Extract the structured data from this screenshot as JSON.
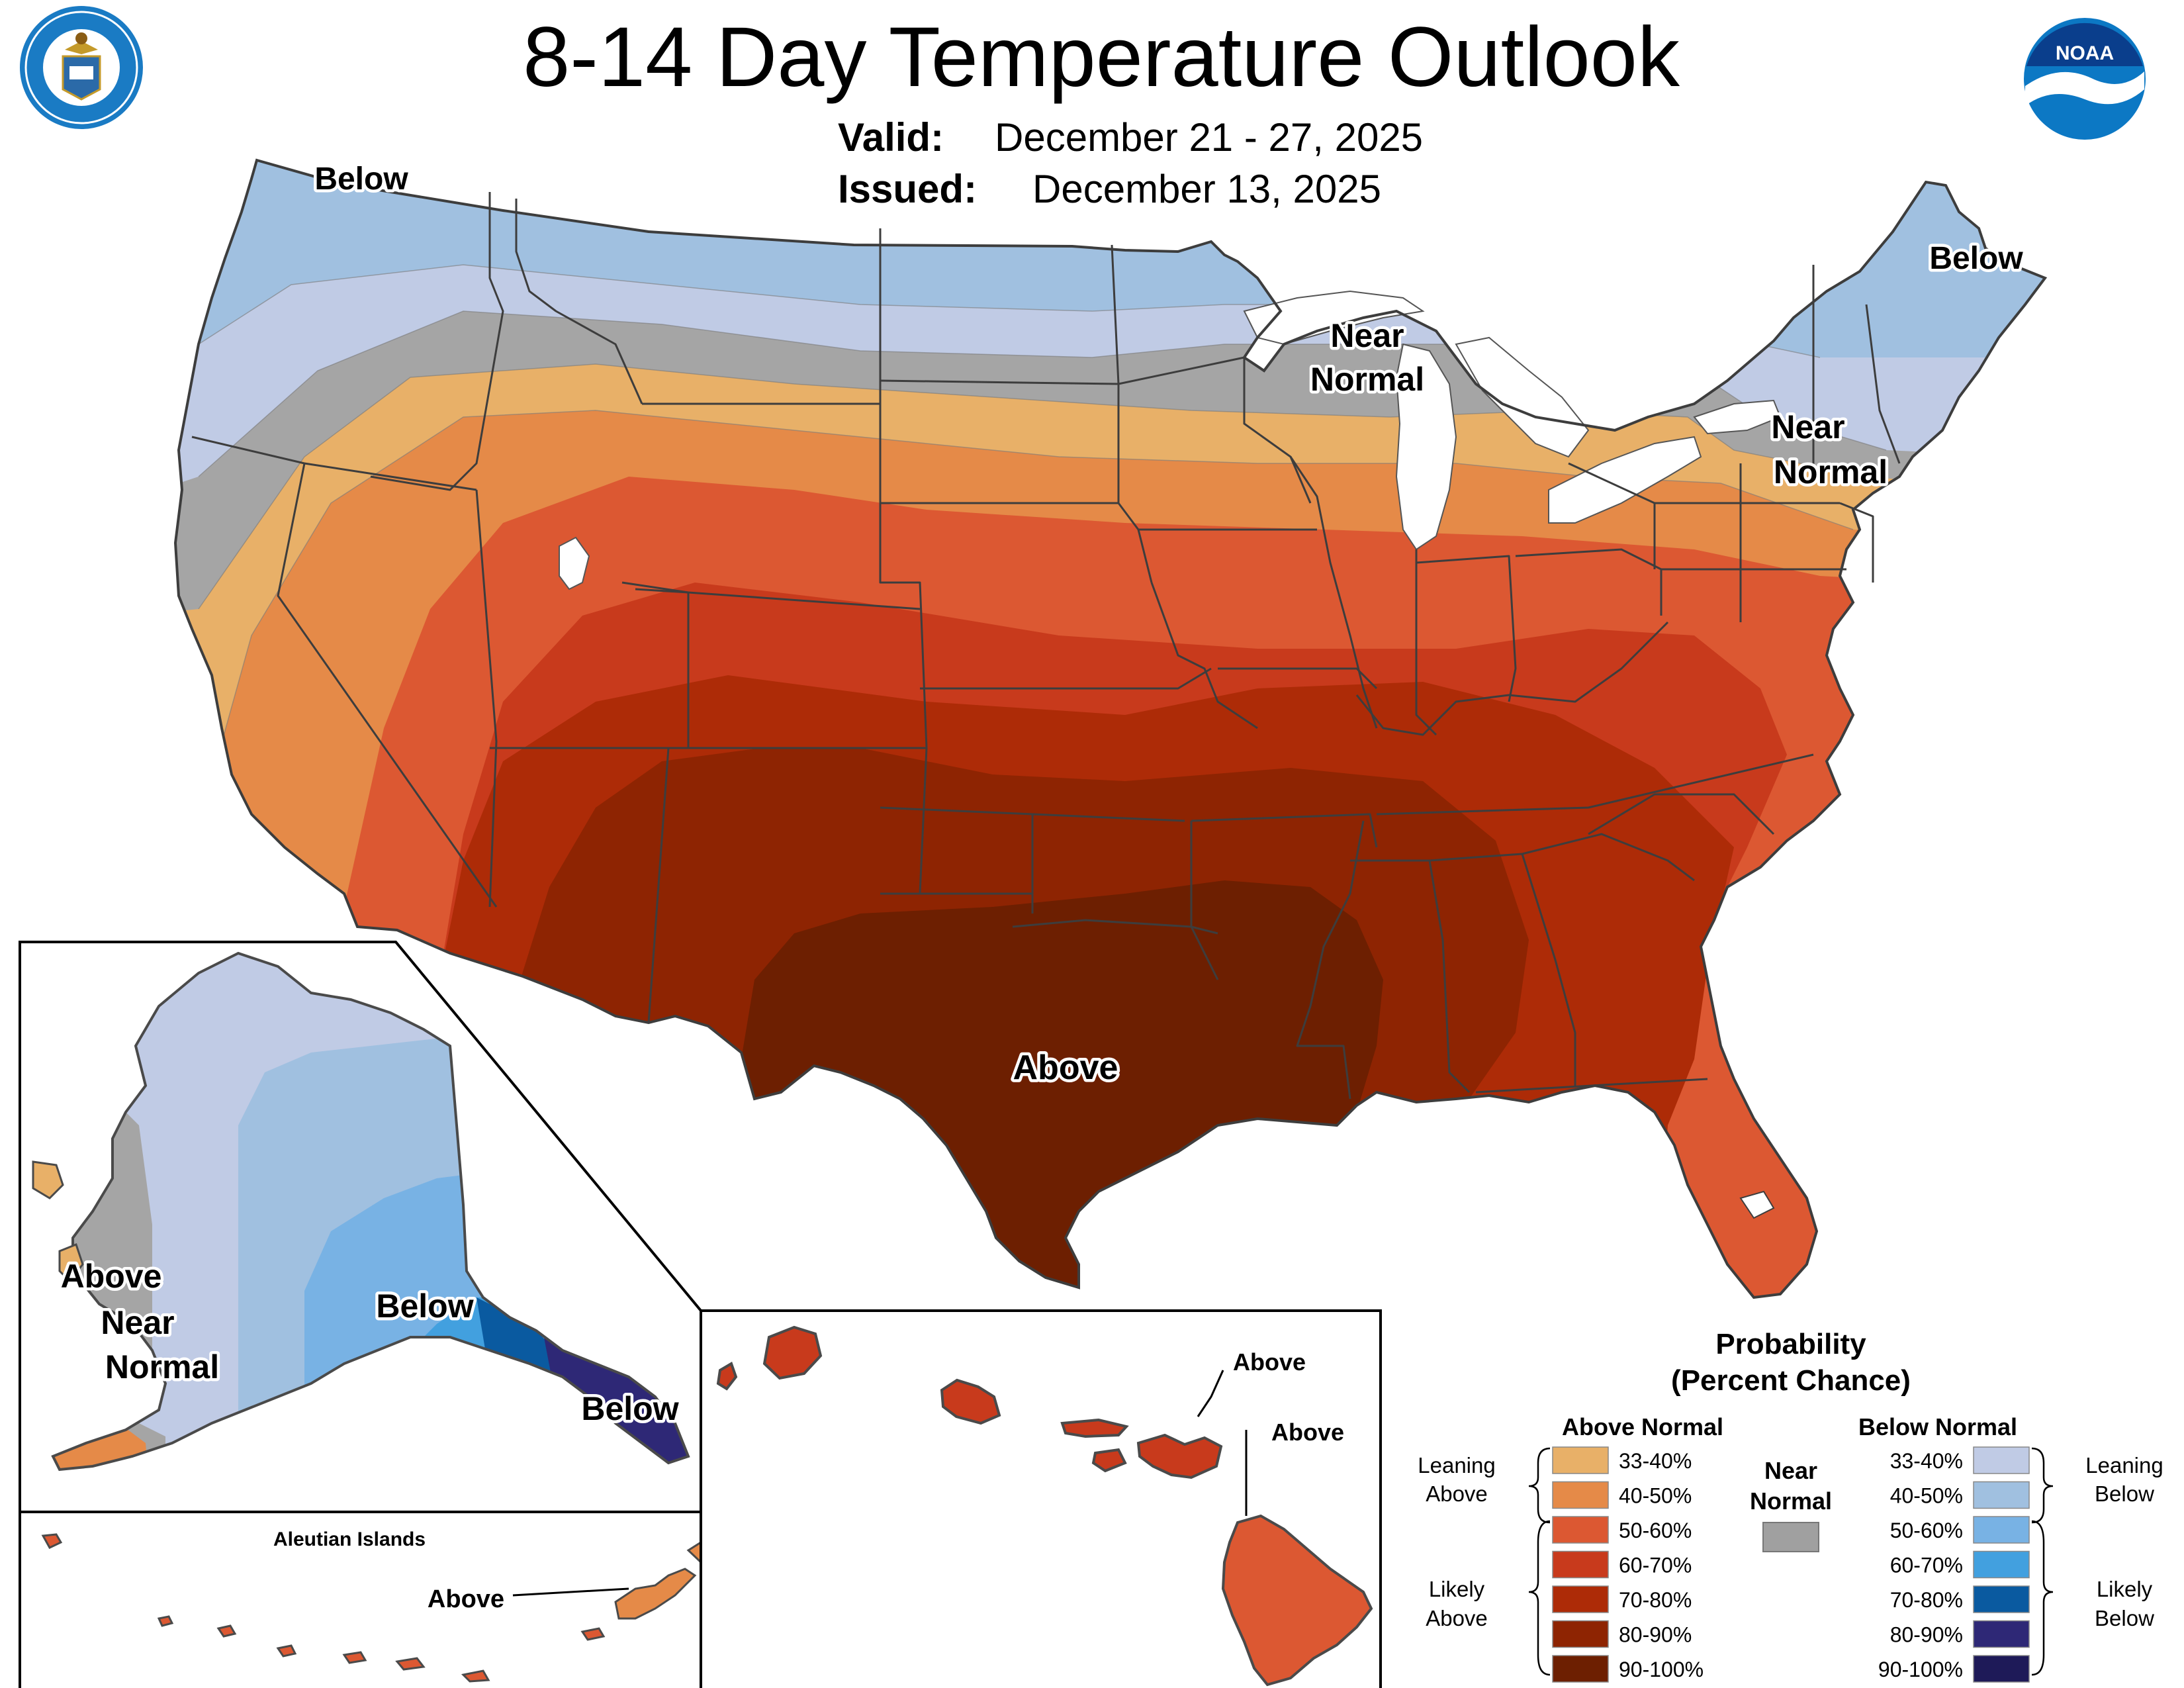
{
  "title": "8-14 Day Temperature Outlook",
  "valid": {
    "label": "Valid:",
    "value": "December 21 - 27, 2025"
  },
  "issued": {
    "label": "Issued:",
    "value": "December 13, 2025"
  },
  "agency_logos": {
    "left": "Department of Commerce seal",
    "right": "NOAA logo",
    "noaa_text": "NOAA"
  },
  "map_labels": {
    "conus_below_nw": "Below",
    "conus_below_ne": "Below",
    "conus_near_normal_lakes": [
      "Near",
      "Normal"
    ],
    "conus_near_normal_ne": [
      "Near",
      "Normal"
    ],
    "conus_above": "Above",
    "ak_above": "Above",
    "ak_near_normal": [
      "Near",
      "Normal"
    ],
    "ak_below_south": "Below",
    "ak_below_panhandle": "Below",
    "aleutian_title": "Aleutian Islands",
    "aleutian_above": "Above",
    "hi_above_maui": "Above",
    "hi_above_big_island": "Above"
  },
  "legend": {
    "title_line1": "Probability",
    "title_line2": "(Percent Chance)",
    "above_header": "Above Normal",
    "below_header": "Below Normal",
    "near_header": [
      "Near",
      "Normal"
    ],
    "near_color": "#a0a0a0",
    "leaning_above": [
      "Leaning",
      "Above"
    ],
    "likely_above": [
      "Likely",
      "Above"
    ],
    "leaning_below": [
      "Leaning",
      "Below"
    ],
    "likely_below": [
      "Likely",
      "Below"
    ],
    "above": [
      {
        "range": "33-40%",
        "color": "#e8b068"
      },
      {
        "range": "40-50%",
        "color": "#e58a48"
      },
      {
        "range": "50-60%",
        "color": "#dc5832"
      },
      {
        "range": "60-70%",
        "color": "#c83a1c"
      },
      {
        "range": "70-80%",
        "color": "#ad2b07"
      },
      {
        "range": "80-90%",
        "color": "#8e2402"
      },
      {
        "range": "90-100%",
        "color": "#6d1f01"
      }
    ],
    "below": [
      {
        "range": "33-40%",
        "color": "#c0cbe5"
      },
      {
        "range": "40-50%",
        "color": "#a0c0e0"
      },
      {
        "range": "50-60%",
        "color": "#78b2e4"
      },
      {
        "range": "60-70%",
        "color": "#42a0df"
      },
      {
        "range": "70-80%",
        "color": "#0a5aa0"
      },
      {
        "range": "80-90%",
        "color": "#2e2876"
      },
      {
        "range": "90-100%",
        "color": "#1e1a58"
      }
    ]
  }
}
